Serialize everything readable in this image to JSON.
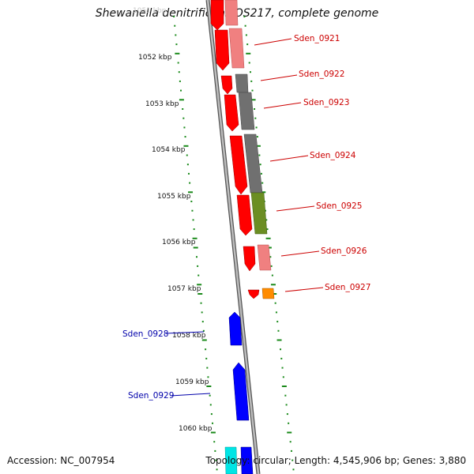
{
  "title": "Shewanella denitrificans OS217, complete genome",
  "footer": {
    "accession": "Accession: NC_007954",
    "topology": "Topology: circular; Length: 4,545,906 bp; Genes: 3,880"
  },
  "colors": {
    "ruler_ticks": "#1a8a1a",
    "gene_label_red": "#cc0000",
    "gene_label_blue": "#0000aa",
    "backbone": "#8a8a8a"
  },
  "scale_labels": [
    "1052 kbp",
    "1053 kbp",
    "1054 kbp",
    "1055 kbp",
    "1056 kbp",
    "1057 kbp",
    "1058 kbp",
    "1059 kbp",
    "1060 kbp"
  ],
  "genes": [
    {
      "name": "Sden_0921",
      "start_kbp": 1051.45,
      "end_kbp": 1052.25,
      "strand": "+",
      "color": "#ff0000"
    },
    {
      "name": "Sden_0922",
      "start_kbp": 1052.45,
      "end_kbp": 1052.85,
      "strand": "+",
      "color": "#ff0000"
    },
    {
      "name": "Sden_0923",
      "start_kbp": 1052.92,
      "end_kbp": 1053.55,
      "strand": "+",
      "color": "#ff0000"
    },
    {
      "name": "Sden_0924",
      "start_kbp": 1053.72,
      "end_kbp": 1054.95,
      "strand": "+",
      "color": "#ff0000"
    },
    {
      "name": "Sden_0925",
      "start_kbp": 1055.0,
      "end_kbp": 1055.85,
      "strand": "+",
      "color": "#ff0000"
    },
    {
      "name": "Sden_0926",
      "start_kbp": 1056.1,
      "end_kbp": 1056.6,
      "strand": "+",
      "color": "#ff0000"
    },
    {
      "name": "Sden_0927",
      "start_kbp": 1057.02,
      "end_kbp": 1057.22,
      "strand": "+",
      "color": "#ff0000"
    },
    {
      "name": "Sden_0928",
      "start_kbp": 1057.52,
      "end_kbp": 1058.25,
      "strand": "-",
      "color": "#0000ff"
    },
    {
      "name": "Sden_0929",
      "start_kbp": 1058.68,
      "end_kbp": 1059.95,
      "strand": "-",
      "color": "#0000ff"
    }
  ]
}
